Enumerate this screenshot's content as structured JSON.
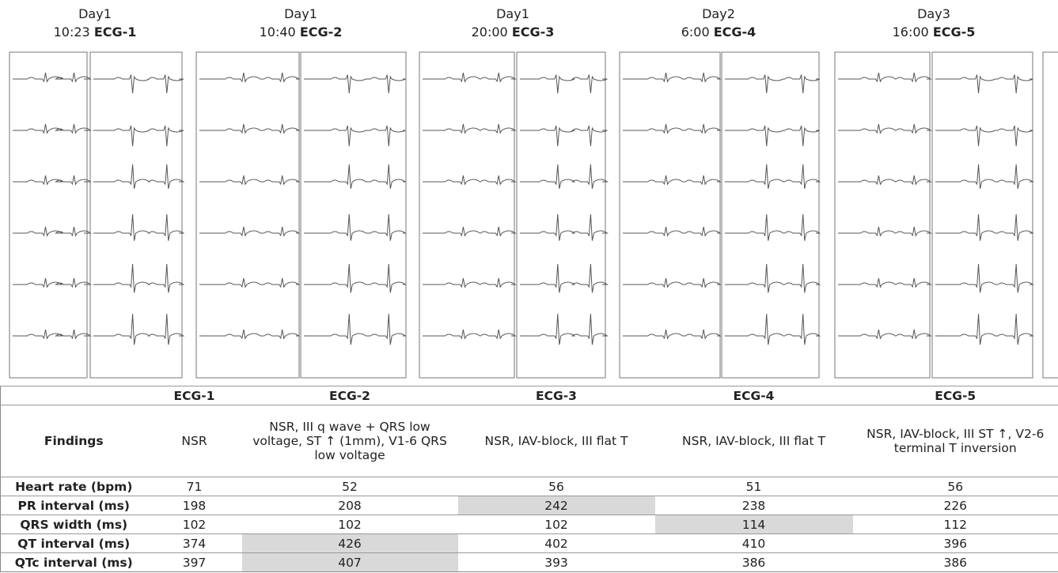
{
  "panels": [
    {
      "day": "Day1",
      "time": "10:23",
      "label": "ECG-1"
    },
    {
      "day": "Day1",
      "time": "10:40",
      "label": "ECG-2"
    },
    {
      "day": "Day1",
      "time": "20:00",
      "label": "ECG-3"
    },
    {
      "day": "Day2",
      "time": "6:00",
      "label": "ECG-4"
    },
    {
      "day": "Day3",
      "time": "16:00",
      "label": "ECG-5"
    }
  ],
  "table": {
    "columns": [
      "ECG-1",
      "ECG-2",
      "ECG-3",
      "ECG-4",
      "ECG-5"
    ],
    "rows": [
      {
        "label": "Findings",
        "cells": [
          {
            "text": "NSR"
          },
          {
            "text": "NSR, III q wave + QRS low voltage, ST ↑ (1mm), V1-6 QRS low voltage"
          },
          {
            "text": "NSR, IAV-block, III flat T"
          },
          {
            "text": "NSR, IAV-block, III flat T"
          },
          {
            "text": "NSR, IAV-block, III ST ↑, V2-6 terminal T inversion"
          }
        ]
      },
      {
        "label": "Heart rate (bpm)",
        "cells": [
          {
            "text": 71
          },
          {
            "text": 52
          },
          {
            "text": 56
          },
          {
            "text": 51
          },
          {
            "text": 56
          }
        ]
      },
      {
        "label": "PR interval (ms)",
        "cells": [
          {
            "text": 198
          },
          {
            "text": 208
          },
          {
            "text": 242,
            "shaded": true
          },
          {
            "text": 238
          },
          {
            "text": 226
          }
        ]
      },
      {
        "label": "QRS width (ms)",
        "cells": [
          {
            "text": 102
          },
          {
            "text": 102
          },
          {
            "text": 102
          },
          {
            "text": 114,
            "shaded": true
          },
          {
            "text": 112
          }
        ]
      },
      {
        "label": "QT interval (ms)",
        "cells": [
          {
            "text": 374
          },
          {
            "text": 426,
            "shaded": true
          },
          {
            "text": 402
          },
          {
            "text": 410
          },
          {
            "text": 396
          }
        ]
      },
      {
        "label": "QTc interval (ms)",
        "cells": [
          {
            "text": 397
          },
          {
            "text": 407,
            "shaded": true
          },
          {
            "text": 393
          },
          {
            "text": 386
          },
          {
            "text": 386
          }
        ]
      }
    ]
  }
}
